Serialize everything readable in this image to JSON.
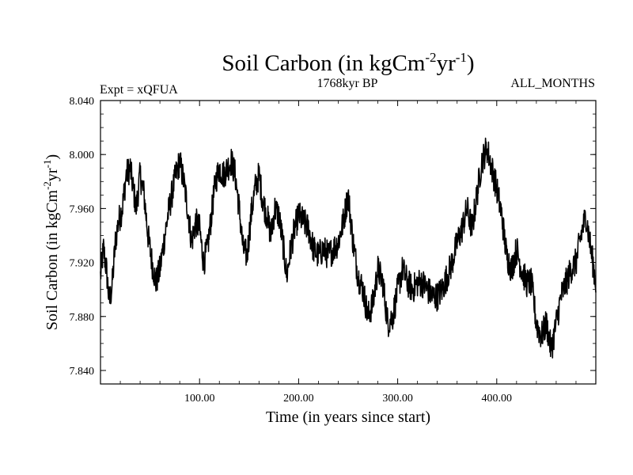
{
  "chart_data": {
    "type": "line",
    "title": "Soil Carbon (in kgCm",
    "title_sup1": "-2",
    "title_mid": "yr",
    "title_sup2": "-1",
    "title_end": ")",
    "subtitle_left": "Expt = xQFUA",
    "subtitle_center": "1768kyr BP",
    "subtitle_right": "ALL_MONTHS",
    "xlabel": "Time (in years since start)",
    "ylabel": "Soil Carbon (in kgCm",
    "ylabel_sup1": "-2",
    "ylabel_mid": "yr",
    "ylabel_sup2": "-1",
    "ylabel_end": ")",
    "xlim": [
      0,
      500
    ],
    "ylim": [
      7.83,
      8.04
    ],
    "xticks": [
      {
        "value": 100,
        "label": "100.00"
      },
      {
        "value": 200,
        "label": "200.00"
      },
      {
        "value": 300,
        "label": "300.00"
      },
      {
        "value": 400,
        "label": "400.00"
      }
    ],
    "yticks": [
      {
        "value": 8.04,
        "label": "8.040"
      },
      {
        "value": 8.0,
        "label": "8.000"
      },
      {
        "value": 7.96,
        "label": "7.960"
      },
      {
        "value": 7.92,
        "label": "7.920"
      },
      {
        "value": 7.88,
        "label": "7.880"
      },
      {
        "value": 7.84,
        "label": "7.840"
      }
    ],
    "series": [
      {
        "name": "Soil Carbon",
        "color": "#000000",
        "x": [
          0,
          3,
          6,
          9,
          12,
          15,
          18,
          22,
          26,
          30,
          33,
          36,
          40,
          44,
          48,
          52,
          56,
          60,
          64,
          68,
          72,
          76,
          80,
          84,
          88,
          92,
          96,
          100,
          104,
          108,
          112,
          116,
          120,
          124,
          128,
          132,
          136,
          140,
          144,
          148,
          152,
          156,
          160,
          164,
          168,
          172,
          176,
          180,
          184,
          188,
          192,
          196,
          200,
          205,
          210,
          215,
          220,
          225,
          230,
          235,
          240,
          245,
          250,
          255,
          260,
          265,
          270,
          275,
          280,
          285,
          290,
          295,
          300,
          305,
          310,
          315,
          320,
          325,
          330,
          335,
          340,
          345,
          350,
          355,
          360,
          365,
          370,
          375,
          380,
          385,
          390,
          395,
          400,
          405,
          410,
          415,
          420,
          425,
          430,
          435,
          440,
          445,
          450,
          455,
          460,
          465,
          470,
          475,
          480,
          485,
          490,
          495,
          500
        ],
        "y": [
          7.91,
          7.93,
          7.915,
          7.89,
          7.905,
          7.935,
          7.95,
          7.96,
          7.985,
          7.99,
          7.975,
          7.96,
          7.985,
          7.97,
          7.94,
          7.92,
          7.905,
          7.915,
          7.935,
          7.955,
          7.97,
          7.985,
          7.995,
          7.98,
          7.96,
          7.935,
          7.95,
          7.945,
          7.92,
          7.93,
          7.955,
          7.98,
          7.99,
          7.985,
          7.99,
          7.995,
          7.985,
          7.96,
          7.93,
          7.925,
          7.955,
          7.975,
          7.985,
          7.965,
          7.955,
          7.94,
          7.96,
          7.955,
          7.935,
          7.91,
          7.93,
          7.945,
          7.955,
          7.95,
          7.945,
          7.93,
          7.925,
          7.93,
          7.925,
          7.93,
          7.935,
          7.95,
          7.97,
          7.935,
          7.91,
          7.9,
          7.88,
          7.89,
          7.915,
          7.905,
          7.875,
          7.88,
          7.9,
          7.915,
          7.905,
          7.9,
          7.905,
          7.905,
          7.9,
          7.895,
          7.895,
          7.9,
          7.91,
          7.92,
          7.935,
          7.945,
          7.96,
          7.945,
          7.97,
          7.995,
          8.005,
          7.99,
          7.975,
          7.955,
          7.925,
          7.915,
          7.93,
          7.915,
          7.905,
          7.905,
          7.875,
          7.865,
          7.875,
          7.855,
          7.875,
          7.895,
          7.905,
          7.915,
          7.92,
          7.94,
          7.955,
          7.93,
          7.905
        ]
      }
    ],
    "grid": false
  }
}
